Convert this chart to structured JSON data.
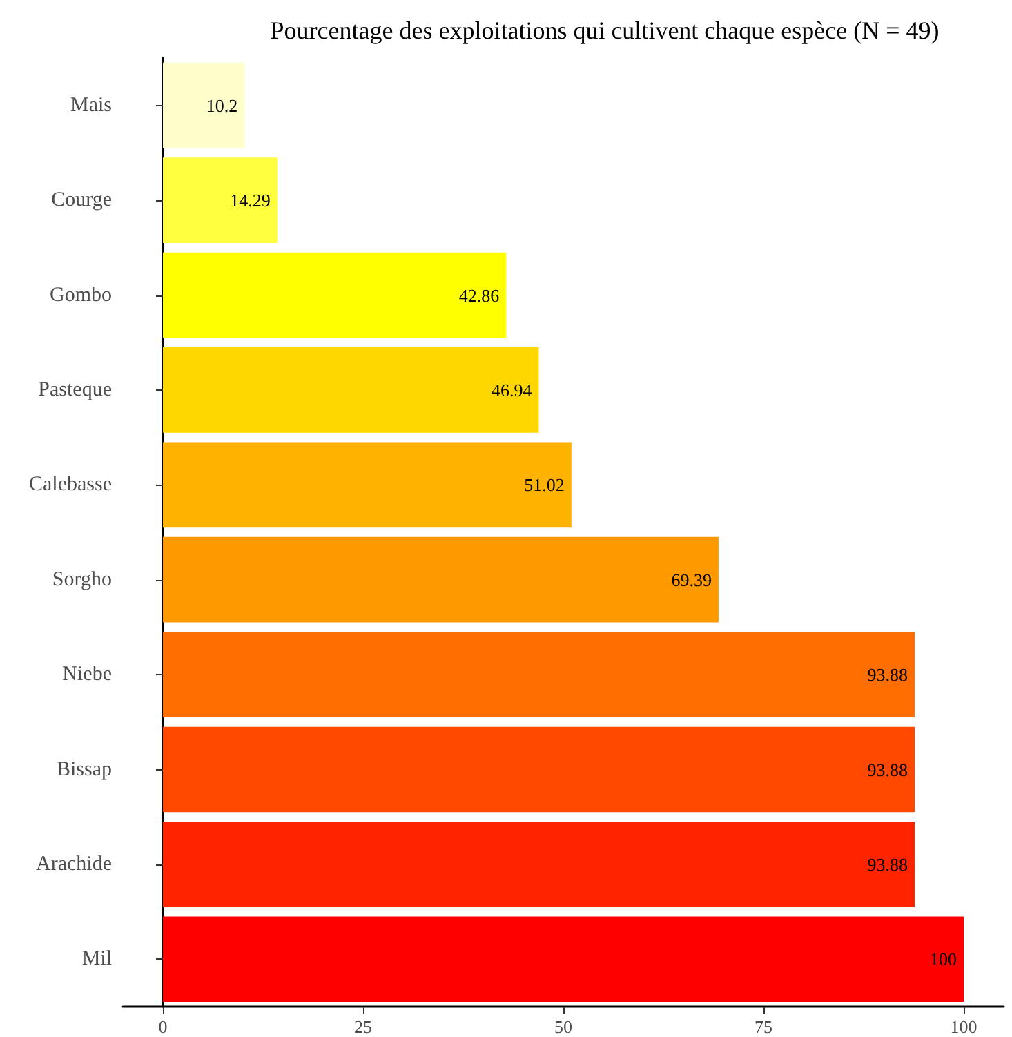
{
  "chart_data": {
    "type": "bar",
    "orientation": "horizontal",
    "title": "Pourcentage des exploitations qui cultivent chaque espèce (N = 49)",
    "categories": [
      "Mais",
      "Courge",
      "Gombo",
      "Pasteque",
      "Calebasse",
      "Sorgho",
      "Niebe",
      "Bissap",
      "Arachide",
      "Mil"
    ],
    "values": [
      10.2,
      14.29,
      42.86,
      46.94,
      51.02,
      69.39,
      93.88,
      93.88,
      93.88,
      100
    ],
    "colors": [
      "#ffffcc",
      "#ffff40",
      "#ffff00",
      "#ffd700",
      "#ffb300",
      "#ff9900",
      "#ff6e00",
      "#ff4800",
      "#ff2400",
      "#ff0000"
    ],
    "xlim": [
      -5,
      105
    ],
    "xticks": [
      0,
      25,
      50,
      75,
      100
    ],
    "data_labels": true,
    "grid": false
  }
}
